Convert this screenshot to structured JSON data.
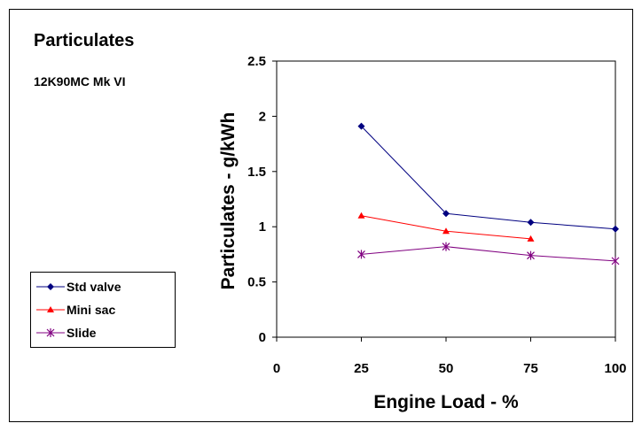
{
  "chart_data": {
    "type": "line",
    "title": "Particulates",
    "subtitle": "12K90MC Mk VI",
    "xlabel": "Engine Load - %",
    "ylabel": "Particulates - g/kWh",
    "xlim": [
      0,
      100
    ],
    "ylim": [
      0,
      2.5
    ],
    "xticks": [
      0,
      25,
      50,
      75,
      100
    ],
    "yticks": [
      0,
      0.5,
      1,
      1.5,
      2,
      2.5
    ],
    "xtick_labels": [
      "0",
      "25",
      "50",
      "75",
      "100"
    ],
    "ytick_labels": [
      "0",
      "0.5",
      "1",
      "1.5",
      "2",
      "2.5"
    ],
    "grid": false,
    "legend_position": "left",
    "series": [
      {
        "name": "Std valve",
        "color": "#000080",
        "marker": "diamond",
        "x": [
          25,
          50,
          75,
          100
        ],
        "y": [
          1.91,
          1.12,
          1.04,
          0.98
        ]
      },
      {
        "name": "Mini sac",
        "color": "#ff0000",
        "marker": "triangle",
        "x": [
          25,
          50,
          75
        ],
        "y": [
          1.1,
          0.96,
          0.89
        ]
      },
      {
        "name": "Slide",
        "color": "#800080",
        "marker": "star",
        "x": [
          25,
          50,
          75,
          100
        ],
        "y": [
          0.75,
          0.82,
          0.74,
          0.69
        ]
      }
    ]
  }
}
